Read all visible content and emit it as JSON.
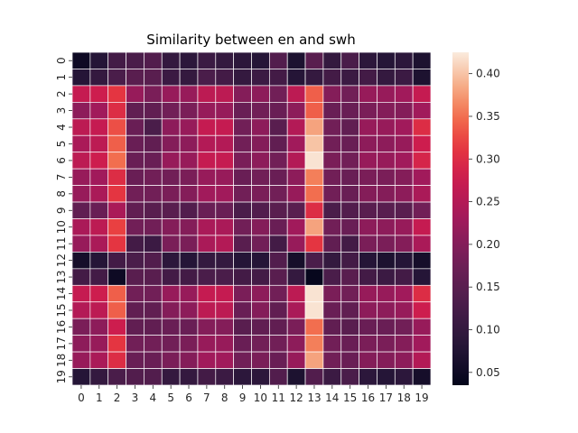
{
  "chart_data": {
    "type": "heatmap",
    "title": "Similarity between en and swh",
    "xlabel": "",
    "ylabel": "",
    "x_categories": [
      "0",
      "1",
      "2",
      "3",
      "4",
      "5",
      "6",
      "7",
      "8",
      "9",
      "10",
      "11",
      "12",
      "13",
      "14",
      "15",
      "16",
      "17",
      "18",
      "19"
    ],
    "y_categories": [
      "0",
      "1",
      "2",
      "3",
      "4",
      "5",
      "6",
      "7",
      "8",
      "9",
      "10",
      "11",
      "12",
      "13",
      "14",
      "15",
      "16",
      "17",
      "18",
      "19"
    ],
    "colorbar": {
      "vmin": 0.035,
      "vmax": 0.425,
      "ticks": [
        0.05,
        0.1,
        0.15,
        0.2,
        0.25,
        0.3,
        0.35,
        0.4
      ],
      "tick_labels": [
        "0.05",
        "0.10",
        "0.15",
        "0.20",
        "0.25",
        "0.30",
        "0.35",
        "0.40"
      ],
      "colormap": "rocket"
    },
    "values": [
      [
        0.05,
        0.08,
        0.12,
        0.13,
        0.14,
        0.1,
        0.09,
        0.11,
        0.1,
        0.09,
        0.08,
        0.14,
        0.07,
        0.15,
        0.1,
        0.13,
        0.09,
        0.08,
        0.09,
        0.07
      ],
      [
        0.08,
        0.1,
        0.13,
        0.15,
        0.15,
        0.11,
        0.1,
        0.13,
        0.12,
        0.1,
        0.11,
        0.12,
        0.08,
        0.1,
        0.12,
        0.11,
        0.12,
        0.1,
        0.11,
        0.07
      ],
      [
        0.27,
        0.28,
        0.31,
        0.22,
        0.19,
        0.22,
        0.22,
        0.26,
        0.26,
        0.2,
        0.21,
        0.18,
        0.26,
        0.34,
        0.2,
        0.18,
        0.22,
        0.22,
        0.23,
        0.27
      ],
      [
        0.21,
        0.23,
        0.3,
        0.16,
        0.16,
        0.18,
        0.19,
        0.22,
        0.22,
        0.17,
        0.18,
        0.17,
        0.21,
        0.34,
        0.17,
        0.17,
        0.19,
        0.2,
        0.2,
        0.23
      ],
      [
        0.26,
        0.27,
        0.33,
        0.17,
        0.13,
        0.21,
        0.22,
        0.27,
        0.27,
        0.18,
        0.21,
        0.15,
        0.25,
        0.38,
        0.18,
        0.16,
        0.22,
        0.22,
        0.23,
        0.3
      ],
      [
        0.24,
        0.26,
        0.34,
        0.17,
        0.16,
        0.2,
        0.21,
        0.25,
        0.25,
        0.18,
        0.2,
        0.16,
        0.23,
        0.4,
        0.18,
        0.17,
        0.21,
        0.21,
        0.22,
        0.28
      ],
      [
        0.26,
        0.28,
        0.35,
        0.17,
        0.17,
        0.22,
        0.22,
        0.27,
        0.27,
        0.19,
        0.21,
        0.18,
        0.25,
        0.42,
        0.19,
        0.18,
        0.22,
        0.22,
        0.23,
        0.29
      ],
      [
        0.22,
        0.23,
        0.3,
        0.17,
        0.18,
        0.18,
        0.19,
        0.22,
        0.22,
        0.17,
        0.18,
        0.17,
        0.21,
        0.36,
        0.18,
        0.17,
        0.19,
        0.19,
        0.2,
        0.23
      ],
      [
        0.22,
        0.24,
        0.31,
        0.18,
        0.18,
        0.19,
        0.2,
        0.23,
        0.23,
        0.18,
        0.19,
        0.18,
        0.22,
        0.35,
        0.18,
        0.17,
        0.2,
        0.2,
        0.21,
        0.24
      ],
      [
        0.16,
        0.17,
        0.24,
        0.16,
        0.15,
        0.15,
        0.14,
        0.17,
        0.17,
        0.13,
        0.14,
        0.15,
        0.15,
        0.3,
        0.13,
        0.14,
        0.15,
        0.15,
        0.15,
        0.18
      ],
      [
        0.24,
        0.26,
        0.32,
        0.18,
        0.18,
        0.2,
        0.2,
        0.24,
        0.24,
        0.18,
        0.2,
        0.17,
        0.23,
        0.38,
        0.18,
        0.17,
        0.21,
        0.21,
        0.22,
        0.27
      ],
      [
        0.22,
        0.24,
        0.31,
        0.12,
        0.11,
        0.19,
        0.19,
        0.24,
        0.25,
        0.15,
        0.18,
        0.12,
        0.22,
        0.31,
        0.16,
        0.12,
        0.19,
        0.19,
        0.2,
        0.24
      ],
      [
        0.06,
        0.08,
        0.12,
        0.13,
        0.14,
        0.09,
        0.08,
        0.1,
        0.1,
        0.08,
        0.08,
        0.14,
        0.06,
        0.13,
        0.1,
        0.12,
        0.08,
        0.07,
        0.08,
        0.06
      ],
      [
        0.12,
        0.12,
        0.05,
        0.15,
        0.15,
        0.12,
        0.12,
        0.13,
        0.13,
        0.12,
        0.12,
        0.15,
        0.1,
        0.04,
        0.13,
        0.15,
        0.12,
        0.11,
        0.12,
        0.08
      ],
      [
        0.27,
        0.28,
        0.34,
        0.18,
        0.18,
        0.22,
        0.22,
        0.27,
        0.27,
        0.19,
        0.21,
        0.18,
        0.26,
        0.42,
        0.19,
        0.18,
        0.22,
        0.22,
        0.23,
        0.3
      ],
      [
        0.25,
        0.26,
        0.34,
        0.16,
        0.16,
        0.2,
        0.21,
        0.26,
        0.26,
        0.17,
        0.2,
        0.16,
        0.24,
        0.42,
        0.17,
        0.16,
        0.21,
        0.21,
        0.22,
        0.28
      ],
      [
        0.19,
        0.21,
        0.28,
        0.16,
        0.16,
        0.17,
        0.17,
        0.2,
        0.2,
        0.15,
        0.16,
        0.16,
        0.19,
        0.35,
        0.16,
        0.15,
        0.17,
        0.17,
        0.18,
        0.22
      ],
      [
        0.21,
        0.22,
        0.31,
        0.18,
        0.18,
        0.18,
        0.19,
        0.22,
        0.22,
        0.17,
        0.18,
        0.18,
        0.21,
        0.36,
        0.18,
        0.17,
        0.19,
        0.19,
        0.2,
        0.23
      ],
      [
        0.22,
        0.24,
        0.3,
        0.17,
        0.17,
        0.19,
        0.2,
        0.23,
        0.23,
        0.18,
        0.19,
        0.17,
        0.22,
        0.38,
        0.18,
        0.17,
        0.2,
        0.2,
        0.21,
        0.25
      ],
      [
        0.08,
        0.1,
        0.13,
        0.14,
        0.14,
        0.1,
        0.1,
        0.12,
        0.11,
        0.09,
        0.09,
        0.14,
        0.07,
        0.14,
        0.11,
        0.13,
        0.09,
        0.08,
        0.09,
        0.06
      ]
    ]
  }
}
